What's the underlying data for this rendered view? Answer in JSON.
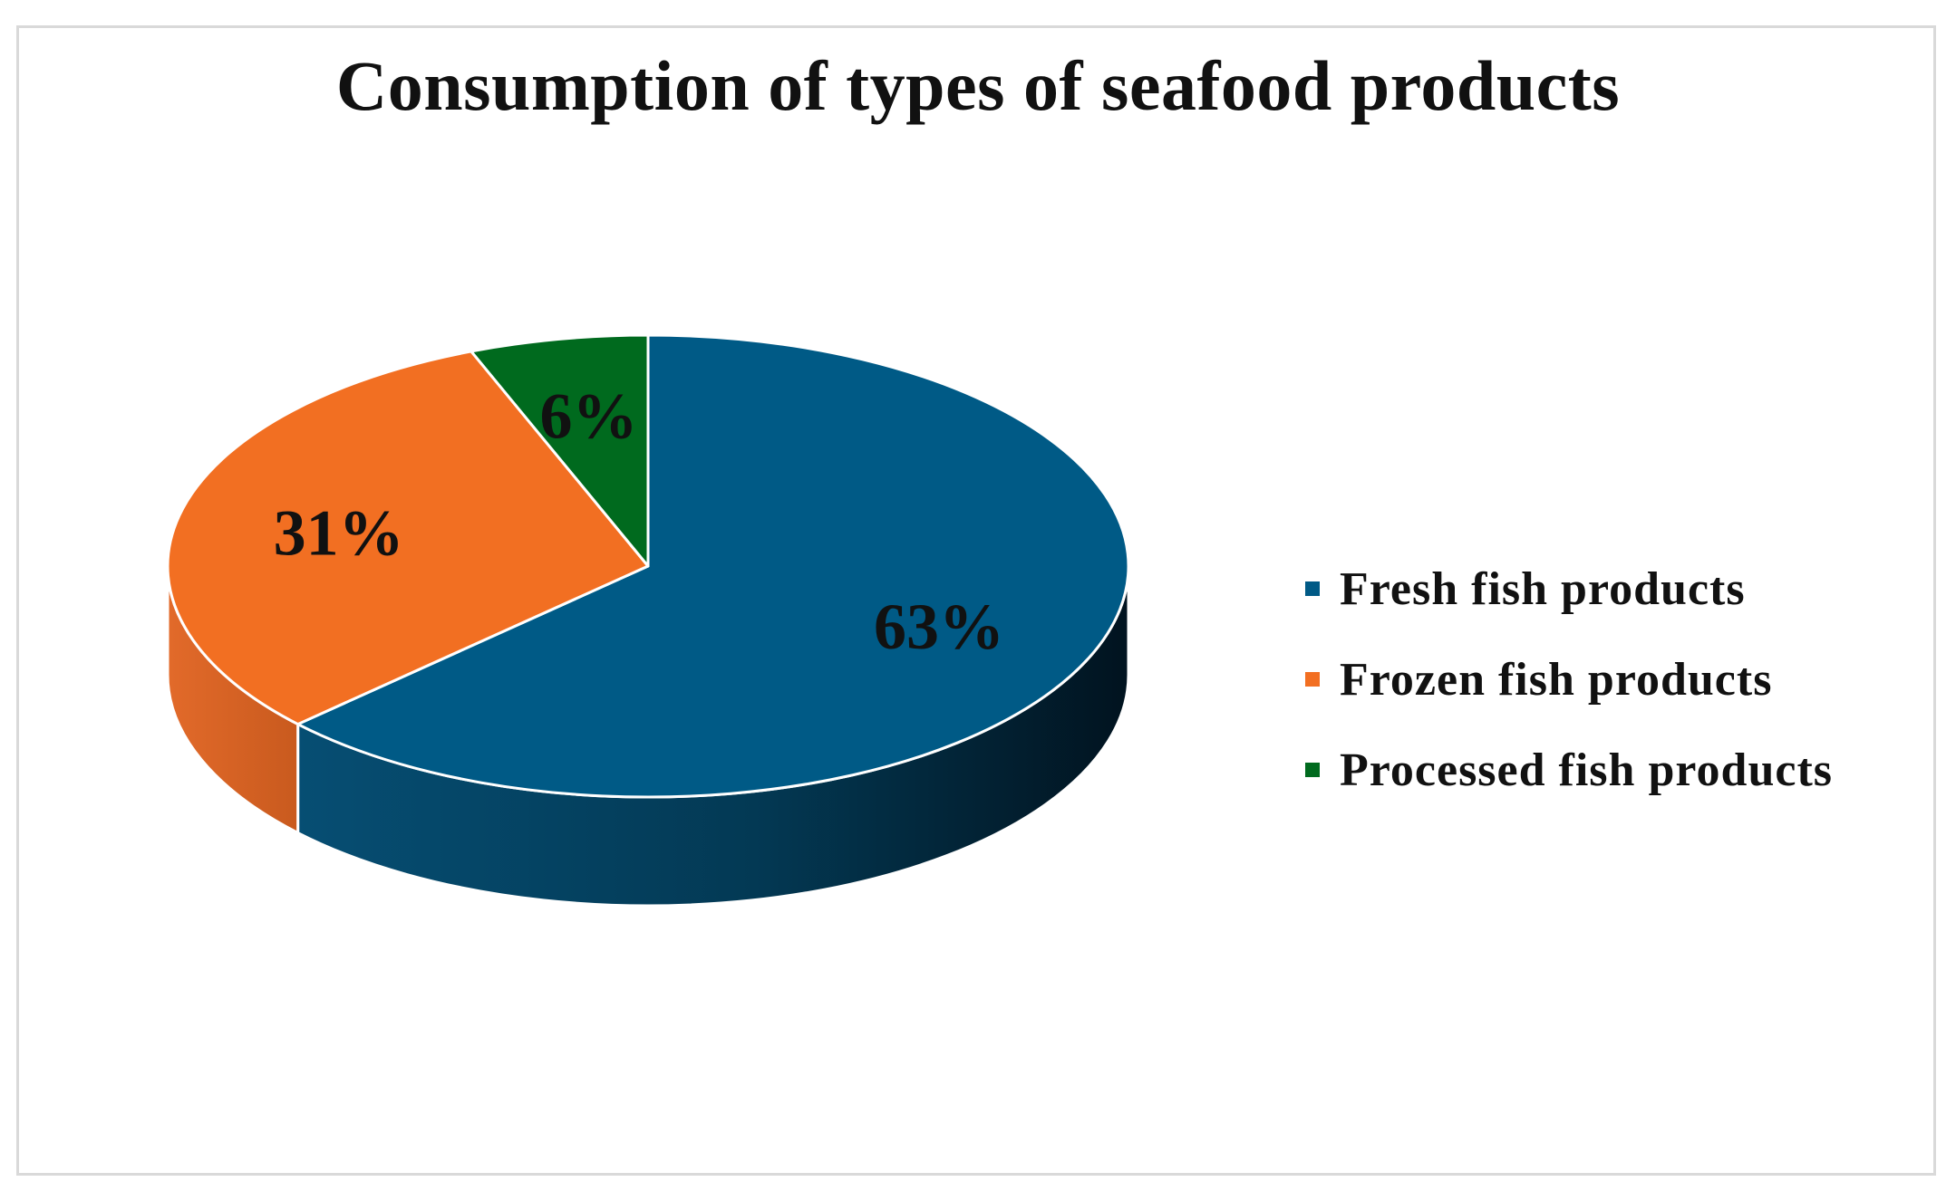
{
  "chart_data": {
    "type": "pie",
    "title": "Consumption of types of seafood products",
    "categories": [
      "Fresh fish products",
      "Frozen fish products",
      "Processed fish products"
    ],
    "values": [
      63,
      31,
      6
    ],
    "data_labels": [
      "63%",
      "31%",
      "6%"
    ],
    "colors": [
      "#005a86",
      "#f26f22",
      "#006a1e"
    ],
    "legend_position": "right",
    "style": "3d"
  }
}
